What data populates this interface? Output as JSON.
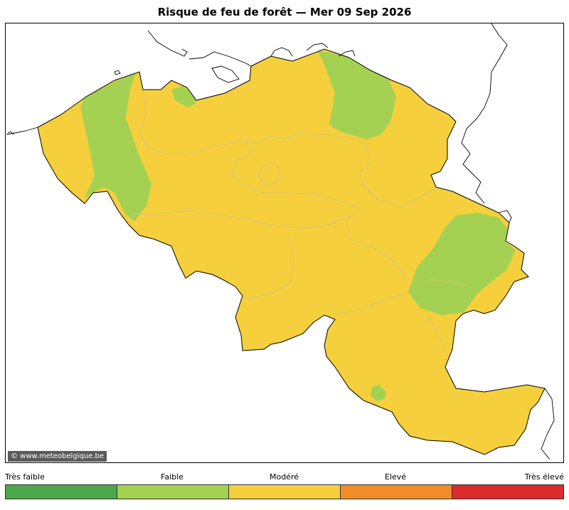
{
  "title": "Risque de feu de forêt  —  Mer 09 Sep 2026",
  "copyright": "© www.meteobelgique.be",
  "map": {
    "region": "Belgium",
    "base_color": "#f5d03c",
    "zone_color": "#a5d152",
    "border_color": "#000000",
    "province_line_color": "#d9c07a"
  },
  "legend": {
    "levels": [
      {
        "label": "Très faible",
        "color": "#4aa84a"
      },
      {
        "label": "Faible",
        "color": "#a5d152"
      },
      {
        "label": "Modéré",
        "color": "#f5d03c"
      },
      {
        "label": "Elevé",
        "color": "#f08c2a"
      },
      {
        "label": "Très élevé",
        "color": "#dd2a2a"
      }
    ]
  }
}
